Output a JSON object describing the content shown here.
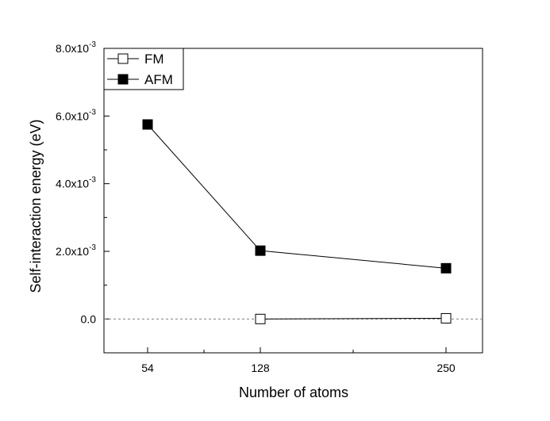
{
  "chart_data": {
    "type": "line",
    "xlabel": "Number of atoms",
    "ylabel": "Self-interaction energy (eV)",
    "categories": [
      "54",
      "128",
      "250"
    ],
    "ylim": [
      -0.001,
      0.008
    ],
    "yticks": [
      {
        "value": 0.0,
        "mantissa": "0.0",
        "exp": ""
      },
      {
        "value": 0.002,
        "mantissa": "2.0x10",
        "exp": "-3"
      },
      {
        "value": 0.004,
        "mantissa": "4.0x10",
        "exp": "-3"
      },
      {
        "value": 0.006,
        "mantissa": "6.0x10",
        "exp": "-3"
      },
      {
        "value": 0.008,
        "mantissa": "8.0x10",
        "exp": "-3"
      }
    ],
    "series": [
      {
        "name": "FM",
        "marker": "open-square",
        "values": [
          null,
          0.0,
          2e-05
        ]
      },
      {
        "name": "AFM",
        "marker": "filled-square",
        "values": [
          0.00575,
          0.00202,
          0.0015
        ]
      }
    ],
    "reference_line": {
      "y": 0.0,
      "style": "dashed"
    },
    "legend_position": "top-left",
    "grid": false,
    "colors": {
      "line": "#000000",
      "reference": "#808080"
    }
  }
}
